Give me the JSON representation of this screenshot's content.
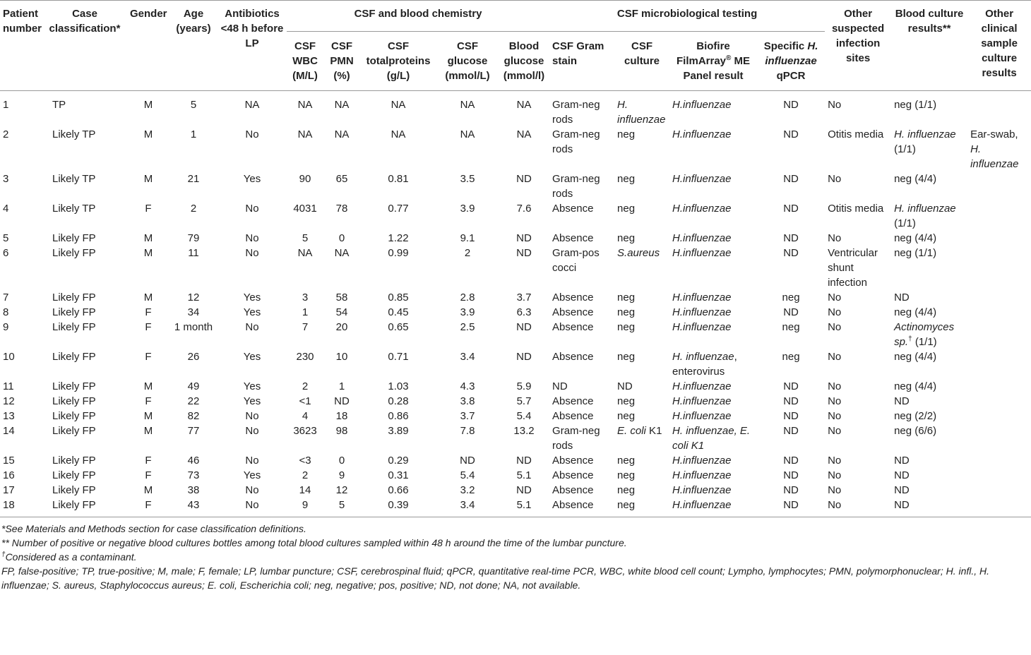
{
  "table": {
    "group_headers": [
      "CSF and blood chemistry",
      "CSF microbiological testing"
    ],
    "headers": [
      "Patient number",
      "Case classification*",
      "Gender",
      "Age (years)",
      "Antibiotics <48 h before LP",
      "CSF WBC (M/L)",
      "CSF PMN (%)",
      "CSF totalproteins (g/L)",
      "CSF glucose (mmol/L)",
      "Blood glucose (mmol/l)",
      "CSF Gram stain",
      "CSF culture",
      [
        "Biofire FilmArray",
        {
          "sup": "®"
        },
        " ME Panel result"
      ],
      [
        "Specific ",
        {
          "i": "H. influenzae"
        },
        " qPCR"
      ],
      "Other suspected infection sites",
      "Blood culture results**",
      "Other clinical sample culture results"
    ],
    "rows": [
      [
        "1",
        "TP",
        "M",
        "5",
        "NA",
        "NA",
        "NA",
        "NA",
        "NA",
        "NA",
        "Gram-neg rods",
        {
          "i": "H. influenzae"
        },
        {
          "i": "H.influenzae"
        },
        "ND",
        "No",
        "neg (1/1)",
        null
      ],
      [
        "2",
        "Likely TP",
        "M",
        "1",
        "No",
        "NA",
        "NA",
        "NA",
        "NA",
        "NA",
        "Gram-neg rods",
        "neg",
        {
          "i": "H.influenzae"
        },
        "ND",
        "Otitis media",
        [
          {
            "i": "H. influenzae"
          },
          " (1/1)"
        ],
        [
          "Ear-swab, ",
          {
            "i": "H. influenzae"
          }
        ]
      ],
      [
        "3",
        "Likely TP",
        "M",
        "21",
        "Yes",
        "90",
        "65",
        "0.81",
        "3.5",
        "ND",
        "Gram-neg rods",
        "neg",
        {
          "i": "H.influenzae"
        },
        "ND",
        "No",
        "neg (4/4)",
        null
      ],
      [
        "4",
        "Likely TP",
        "F",
        "2",
        "No",
        "4031",
        "78",
        "0.77",
        "3.9",
        "7.6",
        "Absence",
        "neg",
        {
          "i": "H.influenzae"
        },
        "ND",
        "Otitis media",
        [
          {
            "i": "H. influenzae"
          },
          " (1/1)"
        ],
        null
      ],
      [
        "5",
        "Likely FP",
        "M",
        "79",
        "No",
        "5",
        "0",
        "1.22",
        "9.1",
        "ND",
        "Absence",
        "neg",
        {
          "i": "H.influenzae"
        },
        "ND",
        "No",
        "neg (4/4)",
        null
      ],
      [
        "6",
        "Likely FP",
        "M",
        "11",
        "No",
        "NA",
        "NA",
        "0.99",
        "2",
        "ND",
        "Gram-pos cocci",
        {
          "i": "S.aureus"
        },
        {
          "i": "H.influenzae"
        },
        "ND",
        "Ventricular shunt infection",
        "neg (1/1)",
        null
      ],
      [
        "7",
        "Likely FP",
        "M",
        "12",
        "Yes",
        "3",
        "58",
        "0.85",
        "2.8",
        "3.7",
        "Absence",
        "neg",
        {
          "i": "H.influenzae"
        },
        "neg",
        "No",
        "ND",
        null
      ],
      [
        "8",
        "Likely FP",
        "F",
        "34",
        "Yes",
        "1",
        "54",
        "0.45",
        "3.9",
        "6.3",
        "Absence",
        "neg",
        {
          "i": "H.influenzae"
        },
        "ND",
        "No",
        "neg (4/4)",
        null
      ],
      [
        "9",
        "Likely FP",
        "F",
        "1 month",
        "No",
        "7",
        "20",
        "0.65",
        "2.5",
        "ND",
        "Absence",
        "neg",
        {
          "i": "H.influenzae"
        },
        "neg",
        "No",
        [
          {
            "i": "Actinomyces sp."
          },
          {
            "sup": "†"
          },
          " (1/1)"
        ],
        null
      ],
      [
        "10",
        "Likely FP",
        "F",
        "26",
        "Yes",
        "230",
        "10",
        "0.71",
        "3.4",
        "ND",
        "Absence",
        "neg",
        [
          {
            "i": "H. influenzae"
          },
          ", enterovirus"
        ],
        "neg",
        "No",
        "neg (4/4)",
        null
      ],
      [
        "11",
        "Likely FP",
        "M",
        "49",
        "Yes",
        "2",
        "1",
        "1.03",
        "4.3",
        "5.9",
        "ND",
        "ND",
        {
          "i": "H.influenzae"
        },
        "ND",
        "No",
        "neg (4/4)",
        null
      ],
      [
        "12",
        "Likely FP",
        "F",
        "22",
        "Yes",
        "<1",
        "ND",
        "0.28",
        "3.8",
        "5.7",
        "Absence",
        "neg",
        {
          "i": "H.influenzae"
        },
        "ND",
        "No",
        "ND",
        null
      ],
      [
        "13",
        "Likely FP",
        "M",
        "82",
        "No",
        "4",
        "18",
        "0.86",
        "3.7",
        "5.4",
        "Absence",
        "neg",
        {
          "i": "H.influenzae"
        },
        "ND",
        "No",
        "neg (2/2)",
        null
      ],
      [
        "14",
        "Likely FP",
        "M",
        "77",
        "No",
        "3623",
        "98",
        "3.89",
        "7.8",
        "13.2",
        "Gram-neg rods",
        [
          {
            "i": "E. coli"
          },
          " K1"
        ],
        {
          "i": "H. influenzae, E. coli K1"
        },
        "ND",
        "No",
        "neg (6/6)",
        null
      ],
      [
        "15",
        "Likely FP",
        "F",
        "46",
        "No",
        "<3",
        "0",
        "0.29",
        "ND",
        "ND",
        "Absence",
        "neg",
        {
          "i": "H.influenzae"
        },
        "ND",
        "No",
        "ND",
        null
      ],
      [
        "16",
        "Likely FP",
        "F",
        "73",
        "Yes",
        "2",
        "9",
        "0.31",
        "5.4",
        "5.1",
        "Absence",
        "neg",
        {
          "i": "H.influenzae"
        },
        "ND",
        "No",
        "ND",
        null
      ],
      [
        "17",
        "Likely FP",
        "M",
        "38",
        "No",
        "14",
        "12",
        "0.66",
        "3.2",
        "ND",
        "Absence",
        "neg",
        {
          "i": "H.influenzae"
        },
        "ND",
        "No",
        "ND",
        null
      ],
      [
        "18",
        "Likely FP",
        "F",
        "43",
        "No",
        "9",
        "5",
        "0.39",
        "3.4",
        "5.1",
        "Absence",
        "neg",
        {
          "i": "H.influenzae"
        },
        "ND",
        "No",
        "ND",
        null
      ]
    ],
    "footnotes": [
      "*See Materials and Methods section for case classification definitions.",
      "** Number of positive or negative blood cultures bottles among total blood cultures sampled within 48 h around the time of the lumbar puncture.",
      [
        {
          "sup": "†"
        },
        "Considered as a contaminant."
      ],
      "FP, false-positive; TP, true-positive; M, male; F, female; LP, lumbar puncture; CSF, cerebrospinal fluid; qPCR, quantitative real-time PCR, WBC, white blood cell count; Lympho, lymphocytes; PMN, polymorphonuclear; H. infl., H. influenzae; S. aureus, Staphylococcus aureus; E. coli, Escherichia coli; neg, negative; pos, positive; ND, not done; NA, not available."
    ]
  }
}
